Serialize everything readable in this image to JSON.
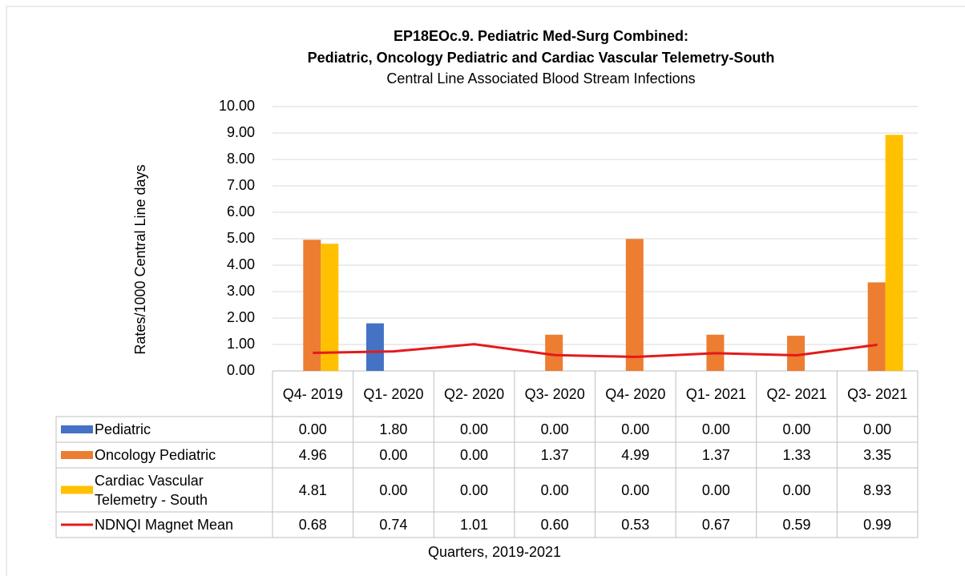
{
  "chart_data": {
    "type": "bar",
    "title": [
      "EP18EOc.9. Pediatric Med-Surg Combined:",
      "Pediatric, Oncology Pediatric and Cardiac Vascular Telemetry-South"
    ],
    "subtitle": "Central Line Associated Blood Stream Infections",
    "y_label": "Rates/1000 Central Line days",
    "x_label": "Quarters, 2019-2021",
    "categories": [
      "Q4- 2019",
      "Q1- 2020",
      "Q2- 2020",
      "Q3- 2020",
      "Q4- 2020",
      "Q1- 2021",
      "Q2- 2021",
      "Q3- 2021"
    ],
    "series": [
      {
        "name": "Pediatric",
        "type": "bar",
        "color": "#4472c4",
        "values": [
          0,
          1.8,
          0,
          0,
          0,
          0,
          0,
          0
        ],
        "value_labels": [
          "0.00",
          "1.80",
          "0.00",
          "0.00",
          "0.00",
          "0.00",
          "0.00",
          "0.00"
        ]
      },
      {
        "name": "Oncology Pediatric",
        "type": "bar",
        "color": "#ed7d31",
        "values": [
          4.96,
          0,
          0,
          1.37,
          4.99,
          1.37,
          1.33,
          3.35
        ],
        "value_labels": [
          "4.96",
          "0.00",
          "0.00",
          "1.37",
          "4.99",
          "1.37",
          "1.33",
          "3.35"
        ]
      },
      {
        "name": "Cardiac Vascular Telemetry - South",
        "type": "bar",
        "color": "#ffc000",
        "values": [
          4.81,
          0,
          0,
          0,
          0,
          0,
          0,
          8.93
        ],
        "value_labels": [
          "4.81",
          "0.00",
          "0.00",
          "0.00",
          "0.00",
          "0.00",
          "0.00",
          "8.93"
        ]
      },
      {
        "name": "NDNQI Magnet Mean",
        "type": "line",
        "color": "#e31a1c",
        "values": [
          0.68,
          0.74,
          1.01,
          0.6,
          0.53,
          0.67,
          0.59,
          0.99
        ],
        "value_labels": [
          "0.68",
          "0.74",
          "1.01",
          "0.60",
          "0.53",
          "0.67",
          "0.59",
          "0.99"
        ]
      }
    ],
    "ylim": [
      0,
      10
    ],
    "yticks": [
      {
        "value": 0,
        "label": "0.00"
      },
      {
        "value": 1,
        "label": "1.00"
      },
      {
        "value": 2,
        "label": "2.00"
      },
      {
        "value": 3,
        "label": "3.00"
      },
      {
        "value": 4,
        "label": "4.00"
      },
      {
        "value": 5,
        "label": "5.00"
      },
      {
        "value": 6,
        "label": "6.00"
      },
      {
        "value": 7,
        "label": "7.00"
      },
      {
        "value": 8,
        "label": "8.00"
      },
      {
        "value": 9,
        "label": "9.00"
      },
      {
        "value": 10,
        "label": "10.00"
      }
    ],
    "grid": true
  }
}
